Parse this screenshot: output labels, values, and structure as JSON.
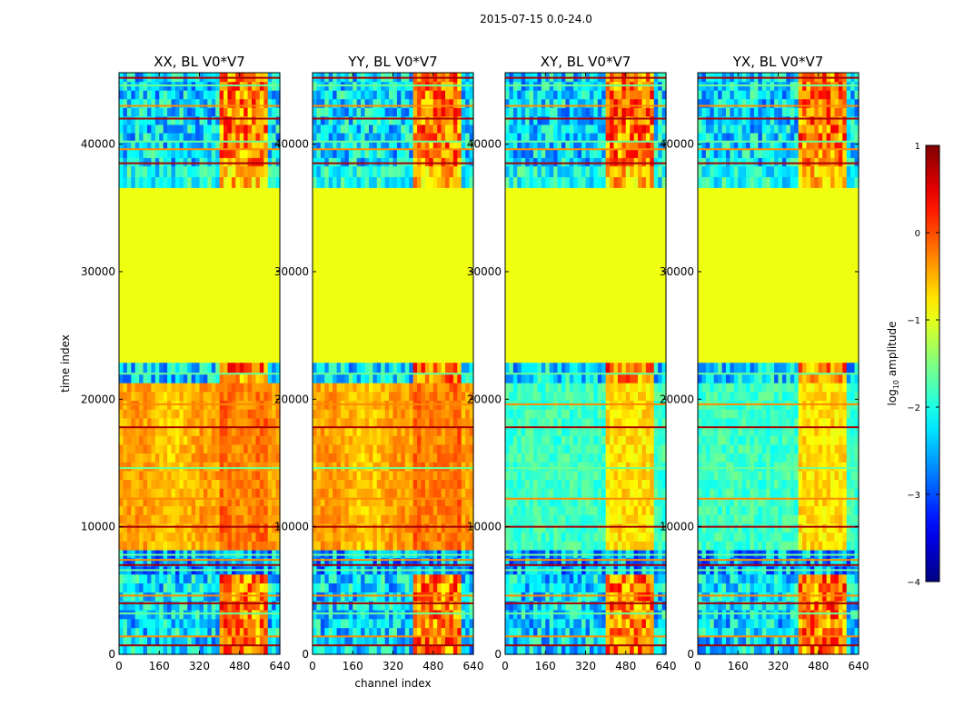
{
  "chart_data": {
    "type": "heatmap",
    "suptitle": "2015-07-15 0.0-24.0",
    "panels": [
      {
        "title": "XX, BL V0*V7",
        "kind": "parallel"
      },
      {
        "title": "YY, BL V0*V7",
        "kind": "parallel"
      },
      {
        "title": "XY, BL V0*V7",
        "kind": "cross"
      },
      {
        "title": "YX, BL V0*V7",
        "kind": "cross"
      }
    ],
    "xlabel": "channel index",
    "ylabel": "time index",
    "xlim": [
      0,
      640
    ],
    "ylim": [
      0,
      45600
    ],
    "xticks": [
      0,
      160,
      320,
      480,
      640
    ],
    "yticks": [
      0,
      10000,
      20000,
      30000,
      40000
    ],
    "colorbar": {
      "label_prefix": "log",
      "label_sub": "10",
      "label_suffix": " amplitude",
      "range": [
        -4,
        1
      ],
      "ticks": [
        1,
        0,
        -1,
        -2,
        -3,
        -4
      ],
      "tick_labels": [
        "1",
        "0",
        "−1",
        "−2",
        "−3",
        "−4"
      ],
      "colormap": "jet"
    }
  }
}
